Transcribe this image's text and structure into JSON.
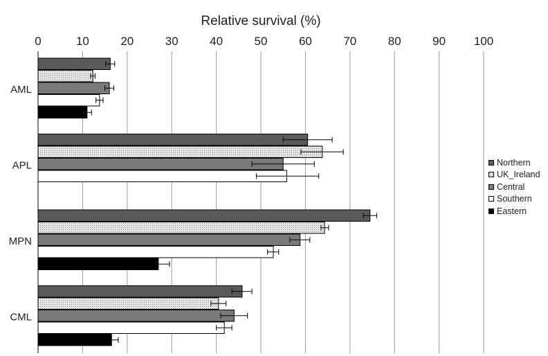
{
  "chart_data": {
    "type": "bar",
    "orientation": "horizontal",
    "xlabel": "Relative survival (%)",
    "xlim": [
      0,
      100
    ],
    "xticks": [
      "0",
      "10",
      "20",
      "30",
      "40",
      "50",
      "60",
      "70",
      "80",
      "90",
      "100"
    ],
    "grid": true,
    "legend_position": "right",
    "categories": [
      "AML",
      "APL",
      "MPN",
      "CML"
    ],
    "series": [
      {
        "name": "Northern",
        "color": "#5a5a5a",
        "pattern": "solid",
        "values": [
          16.2,
          60.5,
          74.5,
          45.8
        ],
        "error": [
          [
            15.2,
            17.2
          ],
          [
            55.0,
            66.0
          ],
          [
            73.0,
            76.0
          ],
          [
            43.5,
            48.0
          ]
        ]
      },
      {
        "name": "UK_Ireland",
        "color": "#d4d4d4",
        "pattern": "dots",
        "values": [
          12.3,
          63.8,
          64.3,
          40.5
        ],
        "error": [
          [
            11.8,
            12.8
          ],
          [
            59.0,
            68.5
          ],
          [
            63.5,
            65.2
          ],
          [
            38.8,
            42.2
          ]
        ]
      },
      {
        "name": "Central",
        "color": "#7a7a7a",
        "pattern": "solid",
        "values": [
          16.0,
          55.0,
          58.8,
          44.0
        ],
        "error": [
          [
            15.0,
            17.0
          ],
          [
            48.0,
            62.0
          ],
          [
            56.5,
            61.0
          ],
          [
            41.0,
            47.0
          ]
        ]
      },
      {
        "name": "Southern",
        "color": "#ffffff",
        "pattern": "solid",
        "values": [
          13.8,
          55.8,
          52.8,
          41.8
        ],
        "error": [
          [
            13.0,
            14.6
          ],
          [
            49.0,
            63.0
          ],
          [
            51.5,
            54.0
          ],
          [
            40.0,
            43.5
          ]
        ]
      },
      {
        "name": "Eastern",
        "color": "#000000",
        "pattern": "solid",
        "values": [
          11.0,
          null,
          27.0,
          16.5
        ],
        "error": [
          [
            10.0,
            12.0
          ],
          null,
          [
            24.5,
            29.5
          ],
          [
            15.0,
            18.0
          ]
        ]
      }
    ]
  }
}
